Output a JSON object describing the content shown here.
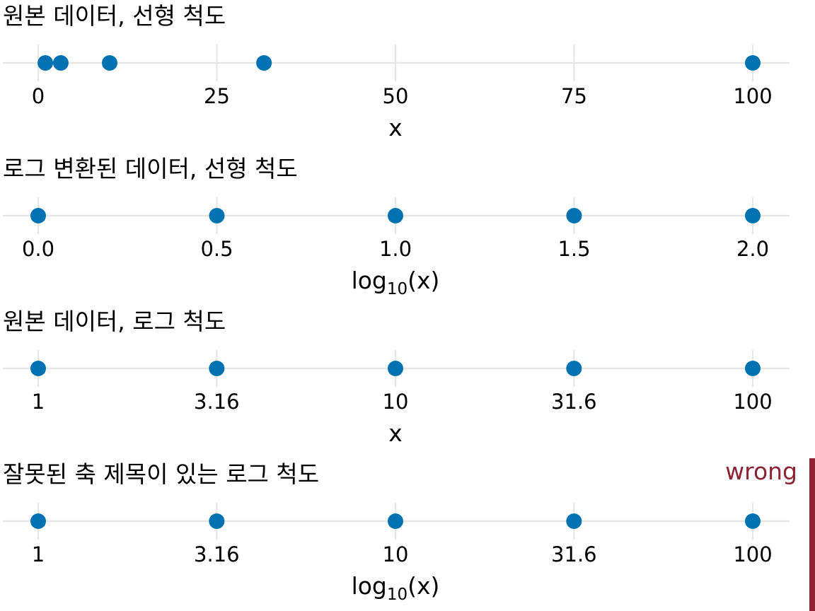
{
  "chart_data": [
    {
      "type": "scatter",
      "title": "원본 데이터, 선형 척도",
      "xlabel": "x",
      "xlim": [
        0,
        100
      ],
      "ticks": [
        0,
        25,
        50,
        75,
        100
      ],
      "tick_labels": [
        "0",
        "25",
        "50",
        "75",
        "100"
      ],
      "x": [
        1,
        3.16,
        10,
        31.6,
        100
      ],
      "grid": true
    },
    {
      "type": "scatter",
      "title": "로그 변환된 데이터, 선형 척도",
      "xlabel": "log",
      "xlabel_sub": "10",
      "xlabel_suffix": "(x)",
      "xlim": [
        0,
        2
      ],
      "ticks": [
        0,
        0.5,
        1,
        1.5,
        2
      ],
      "tick_labels": [
        "0.0",
        "0.5",
        "1.0",
        "1.5",
        "2.0"
      ],
      "x": [
        0,
        0.5,
        1,
        1.5,
        2
      ],
      "grid": true
    },
    {
      "type": "scatter",
      "title": "원본 데이터, 로그 척도",
      "xlabel": "x",
      "scale": "log10",
      "xlim": [
        1,
        100
      ],
      "ticks": [
        1,
        3.16,
        10,
        31.6,
        100
      ],
      "tick_labels": [
        "1",
        "3.16",
        "10",
        "31.6",
        "100"
      ],
      "x": [
        1,
        3.16,
        10,
        31.6,
        100
      ],
      "grid": true
    },
    {
      "type": "scatter",
      "title": "잘못된 축 제목이 있는 로그 척도",
      "xlabel": "log",
      "xlabel_sub": "10",
      "xlabel_suffix": "(x)",
      "scale": "log10",
      "xlim": [
        1,
        100
      ],
      "ticks": [
        1,
        3.16,
        10,
        31.6,
        100
      ],
      "tick_labels": [
        "1",
        "3.16",
        "10",
        "31.6",
        "100"
      ],
      "x": [
        1,
        3.16,
        10,
        31.6,
        100
      ],
      "grid": true,
      "annotation": "wrong"
    }
  ],
  "colors": {
    "point": "#0072B2",
    "grid": "#e5e5e5",
    "wrong": "#8B2332",
    "text": "#000000"
  }
}
